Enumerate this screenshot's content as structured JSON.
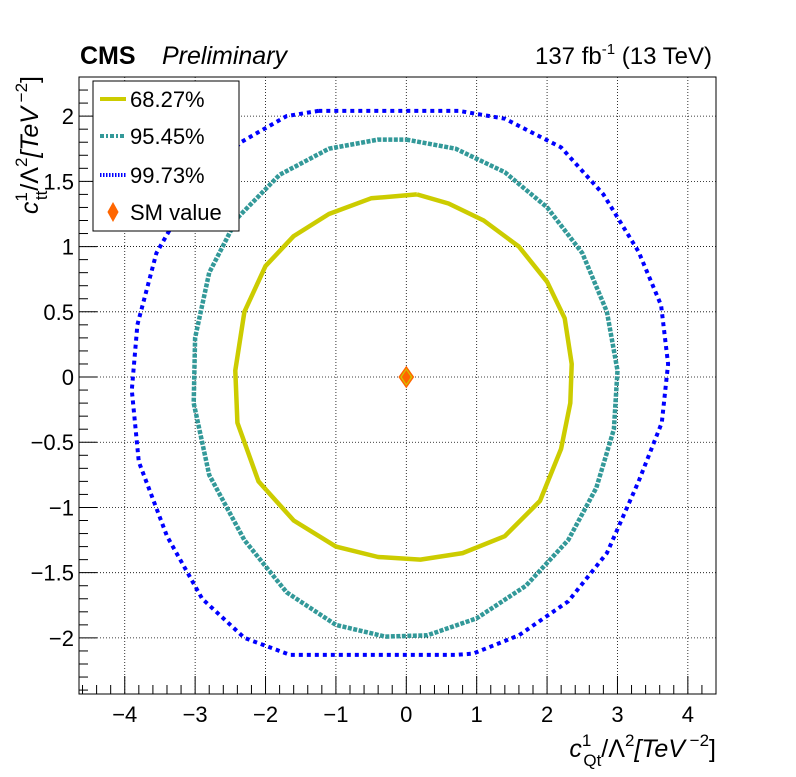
{
  "header": {
    "cms": "CMS",
    "preliminary": "Preliminary",
    "lumi": "137 fb",
    "lumi_exp": "-1",
    "energy": " (13 TeV)"
  },
  "chart_data": {
    "type": "line",
    "title": "",
    "xlabel": {
      "base": "c",
      "sup": "1",
      "sub": "Qt",
      "mid": "/Λ",
      "sup2": "2",
      "unit": "[TeV",
      "unit_exp": " −2",
      "close": "]"
    },
    "ylabel": {
      "base": "c",
      "sup": "1",
      "sub": "tt",
      "mid": "/Λ",
      "sup2": "2",
      "unit": "[TeV",
      "unit_exp": " −2",
      "close": "]"
    },
    "xlim": [
      -4.65,
      4.4
    ],
    "ylim": [
      -2.43,
      2.3
    ],
    "x_ticks": [
      -4,
      -3,
      -2,
      -1,
      0,
      1,
      2,
      3,
      4
    ],
    "x_tick_labels": [
      "−4",
      "−3",
      "−2",
      "−1",
      "0",
      "1",
      "2",
      "3",
      "4"
    ],
    "y_ticks": [
      -2,
      -1.5,
      -1,
      -0.5,
      0,
      0.5,
      1,
      1.5,
      2
    ],
    "y_tick_labels": [
      "−2",
      "−1.5",
      "−1",
      "−0.5",
      "0",
      "0.5",
      "1",
      "1.5",
      "2"
    ],
    "grid": true,
    "legend_position": "top-left",
    "series": [
      {
        "name": "68.27%",
        "color": "#cccc00",
        "style": "solid",
        "points": [
          [
            0.15,
            1.4
          ],
          [
            0.6,
            1.33
          ],
          [
            1.1,
            1.2
          ],
          [
            1.6,
            1.0
          ],
          [
            2.0,
            0.73
          ],
          [
            2.25,
            0.45
          ],
          [
            2.35,
            0.1
          ],
          [
            2.33,
            -0.2
          ],
          [
            2.2,
            -0.55
          ],
          [
            1.9,
            -0.95
          ],
          [
            1.4,
            -1.22
          ],
          [
            0.8,
            -1.35
          ],
          [
            0.2,
            -1.4
          ],
          [
            -0.4,
            -1.38
          ],
          [
            -1.0,
            -1.3
          ],
          [
            -1.6,
            -1.1
          ],
          [
            -2.1,
            -0.8
          ],
          [
            -2.4,
            -0.35
          ],
          [
            -2.43,
            0.05
          ],
          [
            -2.3,
            0.5
          ],
          [
            -2.0,
            0.85
          ],
          [
            -1.6,
            1.08
          ],
          [
            -1.1,
            1.25
          ],
          [
            -0.5,
            1.37
          ],
          [
            0.15,
            1.4
          ]
        ]
      },
      {
        "name": "95.45%",
        "color": "#339999",
        "style": "dashed",
        "points": [
          [
            0.0,
            1.82
          ],
          [
            0.7,
            1.75
          ],
          [
            1.4,
            1.57
          ],
          [
            2.0,
            1.3
          ],
          [
            2.5,
            0.95
          ],
          [
            2.85,
            0.5
          ],
          [
            3.0,
            0.05
          ],
          [
            2.95,
            -0.4
          ],
          [
            2.7,
            -0.85
          ],
          [
            2.3,
            -1.25
          ],
          [
            1.7,
            -1.6
          ],
          [
            1.0,
            -1.85
          ],
          [
            0.3,
            -1.98
          ],
          [
            -0.3,
            -1.99
          ],
          [
            -1.0,
            -1.9
          ],
          [
            -1.7,
            -1.65
          ],
          [
            -2.3,
            -1.25
          ],
          [
            -2.8,
            -0.75
          ],
          [
            -3.02,
            -0.2
          ],
          [
            -3.0,
            0.3
          ],
          [
            -2.8,
            0.8
          ],
          [
            -2.4,
            1.22
          ],
          [
            -1.8,
            1.55
          ],
          [
            -1.1,
            1.75
          ],
          [
            -0.4,
            1.82
          ],
          [
            0.0,
            1.82
          ]
        ]
      },
      {
        "name": "99.73%",
        "color": "#0000ff",
        "style": "dotted",
        "points": [
          [
            -1.25,
            2.04
          ],
          [
            0.75,
            2.04
          ],
          [
            1.4,
            1.98
          ],
          [
            2.2,
            1.76
          ],
          [
            2.8,
            1.4
          ],
          [
            3.3,
            0.96
          ],
          [
            3.62,
            0.55
          ],
          [
            3.72,
            0.1
          ],
          [
            3.63,
            -0.35
          ],
          [
            3.3,
            -0.8
          ],
          [
            2.85,
            -1.35
          ],
          [
            2.3,
            -1.72
          ],
          [
            1.6,
            -1.98
          ],
          [
            0.95,
            -2.12
          ],
          [
            0.7,
            -2.13
          ],
          [
            -1.65,
            -2.13
          ],
          [
            -2.3,
            -2.0
          ],
          [
            -2.9,
            -1.7
          ],
          [
            -3.4,
            -1.22
          ],
          [
            -3.8,
            -0.65
          ],
          [
            -3.9,
            -0.1
          ],
          [
            -3.82,
            0.4
          ],
          [
            -3.55,
            0.95
          ],
          [
            -3.05,
            1.42
          ],
          [
            -2.35,
            1.8
          ],
          [
            -1.7,
            2.0
          ],
          [
            -1.25,
            2.04
          ]
        ]
      }
    ],
    "sm_point": {
      "name": "SM value",
      "x": 0,
      "y": 0,
      "fill": "#ff6600",
      "stroke": "#cccc00"
    }
  }
}
